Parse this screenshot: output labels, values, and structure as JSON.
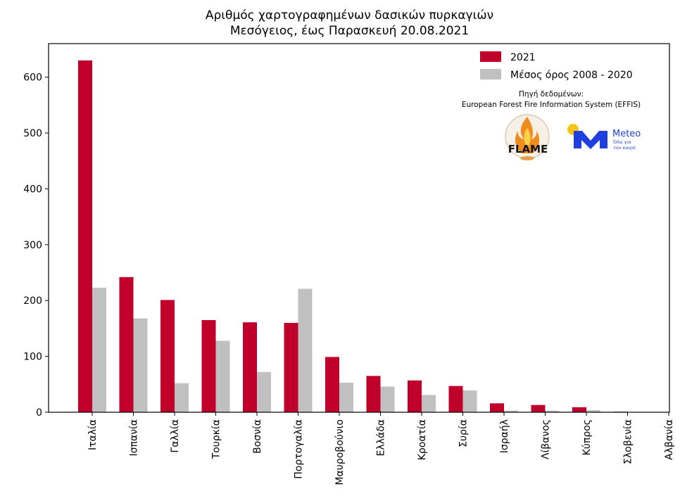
{
  "chart_data": {
    "type": "bar",
    "title": "Αριθμός χαρτογραφημένων δασικών πυρκαγιών",
    "subtitle": "Μεσόγειος, έως Παρασκευή 20.08.2021",
    "categories": [
      "Ιταλία",
      "Ισπανία",
      "Γαλλία",
      "Τουρκία",
      "Βοσνία",
      "Πορτογαλία",
      "Μαυροβούνιο",
      "Ελλάδα",
      "Κροατία",
      "Συρία",
      "Ισραήλ",
      "Λίβανος",
      "Κύπρος",
      "Σλοβενία",
      "Αλβανία"
    ],
    "series": [
      {
        "name": "2021",
        "color": "#c0002a",
        "values": [
          630,
          242,
          201,
          165,
          161,
          160,
          99,
          65,
          57,
          47,
          16,
          13,
          9,
          1,
          0
        ]
      },
      {
        "name": "Μέσος όρος 2008 - 2020",
        "color": "#c0c0c0",
        "values": [
          223,
          168,
          52,
          128,
          72,
          221,
          53,
          46,
          31,
          39,
          3,
          3,
          4,
          0,
          0
        ]
      }
    ],
    "ylim": [
      0,
      660
    ],
    "yticks": [
      0,
      100,
      200,
      300,
      400,
      500,
      600
    ],
    "xlabel": "",
    "ylabel": "",
    "legend": "top-right",
    "grid": false
  },
  "annotation": {
    "source_label": "Πηγή δεδομένων:",
    "source_name": "European Forest Fire Information System (EFFIS)"
  },
  "logos": {
    "flame": {
      "text": "FLAME"
    },
    "meteo": {
      "name": "Meteo",
      "tagline_1": "Όλα για",
      "tagline_2": "τον καιρό"
    }
  }
}
